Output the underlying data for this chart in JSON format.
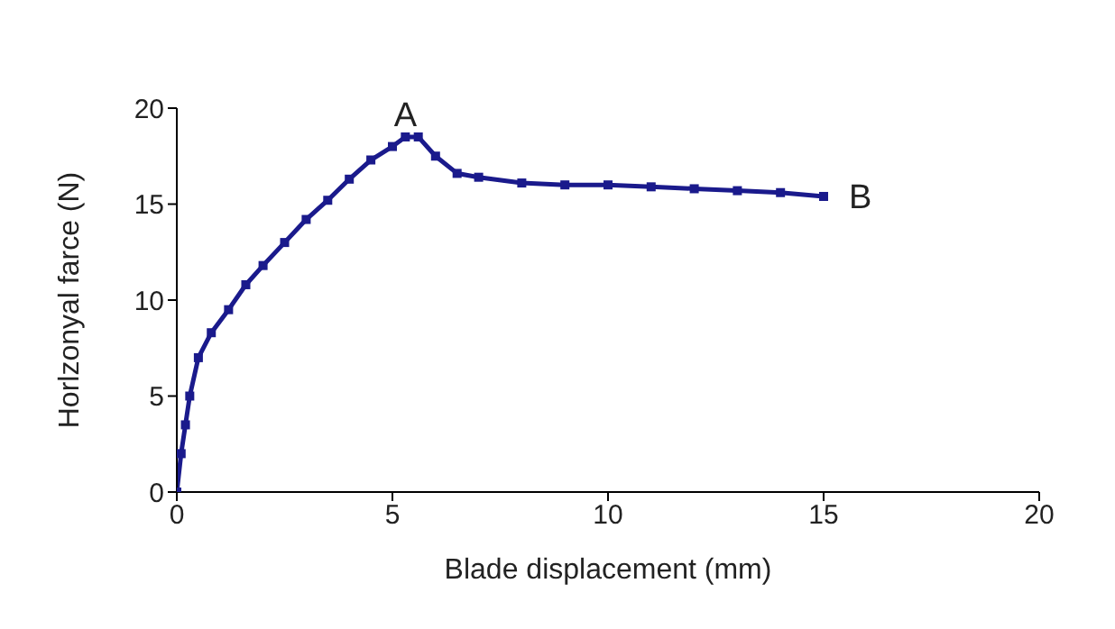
{
  "chart_data": {
    "type": "line",
    "xlabel": "Blade displacement (mm)",
    "ylabel": "Horlzonyal farce (N)",
    "x": [
      0,
      0.1,
      0.2,
      0.3,
      0.5,
      0.8,
      1.2,
      1.6,
      2,
      2.5,
      3,
      3.5,
      4,
      4.5,
      5,
      5.3,
      5.6,
      6,
      6.5,
      7,
      8,
      9,
      10,
      11,
      12,
      13,
      14,
      15
    ],
    "series": [
      {
        "color": "#1a1a8c",
        "values": [
          0,
          2,
          3.5,
          5,
          7,
          8.3,
          9.5,
          10.8,
          11.8,
          13,
          14.2,
          15.2,
          16.3,
          17.3,
          18,
          18.5,
          18.5,
          17.5,
          16.6,
          16.4,
          16.1,
          16,
          16,
          15.9,
          15.8,
          15.7,
          15.6,
          15.4
        ]
      }
    ],
    "xlim": [
      0,
      20
    ],
    "xticks": [
      0,
      5,
      10,
      15,
      20
    ],
    "ylim": [
      0,
      20
    ],
    "yticks": [
      0,
      5,
      10,
      15,
      20
    ],
    "annotations": [
      {
        "text": "A",
        "x": 5.3,
        "y": 18.5
      },
      {
        "text": "B",
        "x": 15,
        "y": 15.4
      }
    ],
    "marker": "square",
    "grid": false,
    "legend": false
  }
}
